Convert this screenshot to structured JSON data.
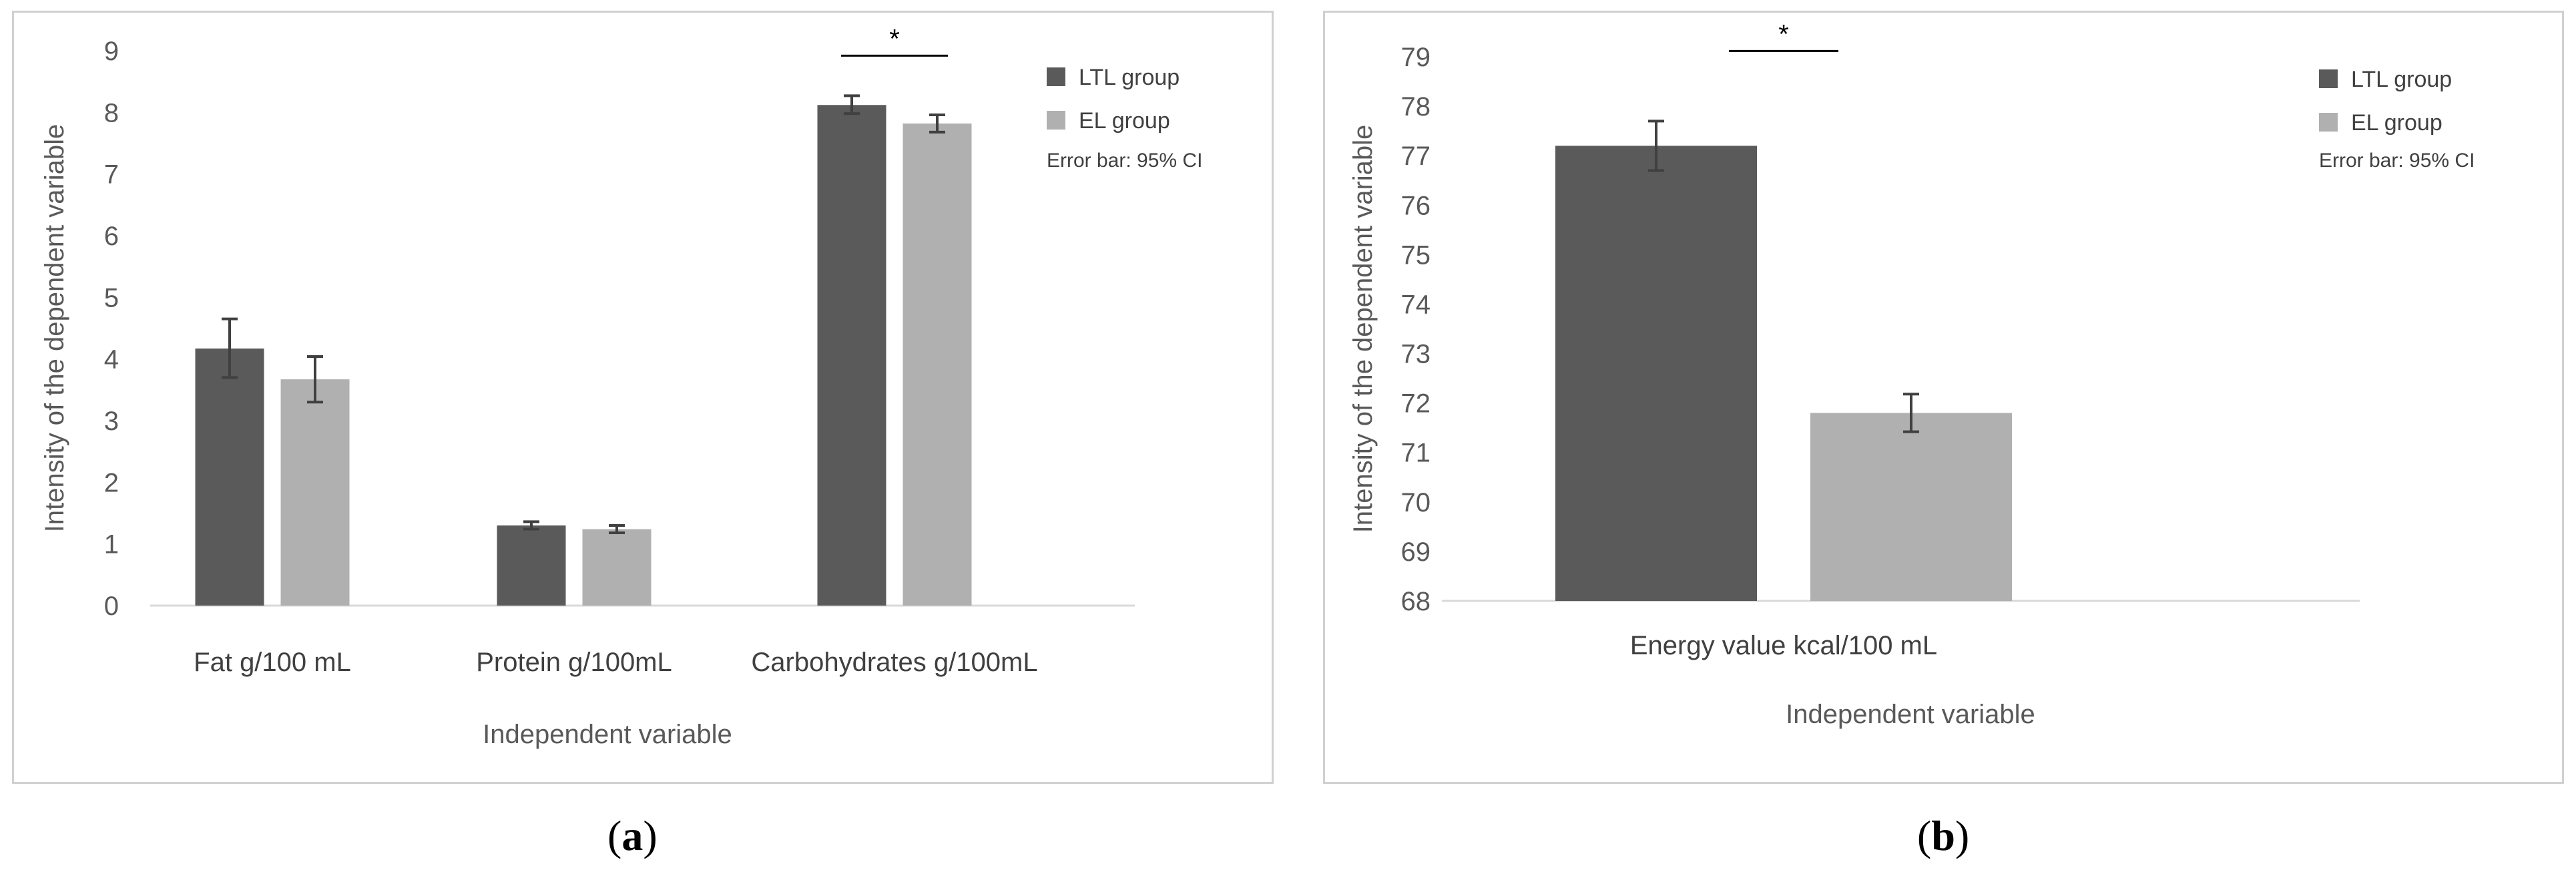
{
  "chart_data": [
    {
      "type": "bar",
      "panel_label": "a",
      "xlabel": "Independent variable",
      "ylabel": "Intensity of the dependent variable",
      "ylim": [
        0,
        9
      ],
      "yticks": [
        0,
        1,
        2,
        3,
        4,
        5,
        6,
        7,
        8,
        9
      ],
      "categories": [
        "Fat  g/100 mL",
        "Protein g/100mL",
        "Carbohydrates  g/100mL"
      ],
      "series": [
        {
          "name": "LTL group",
          "color": "#5a5a5a",
          "values": [
            4.17,
            1.3,
            8.12
          ],
          "ci_low": [
            3.7,
            1.24,
            7.98
          ],
          "ci_high": [
            4.65,
            1.36,
            8.27
          ]
        },
        {
          "name": "EL  group",
          "color": "#b0b0b0",
          "values": [
            3.67,
            1.24,
            7.82
          ],
          "ci_low": [
            3.3,
            1.18,
            7.68
          ],
          "ci_high": [
            4.04,
            1.3,
            7.96
          ]
        }
      ],
      "significance": {
        "category_index": 2,
        "label": "*"
      },
      "legend_note": "Error bar: 95% CI",
      "legend_position": "top-right"
    },
    {
      "type": "bar",
      "panel_label": "b",
      "xlabel": "Independent variable",
      "ylabel": "Intensity of the dependent variable",
      "ylim": [
        68,
        79
      ],
      "yticks": [
        68,
        69,
        70,
        71,
        72,
        73,
        74,
        75,
        76,
        77,
        78,
        79
      ],
      "categories": [
        "Energy value  kcal/100 mL"
      ],
      "series": [
        {
          "name": "LTL group",
          "color": "#5a5a5a",
          "values": [
            77.2
          ],
          "ci_low": [
            76.7
          ],
          "ci_high": [
            77.7
          ]
        },
        {
          "name": "EL  group",
          "color": "#b0b0b0",
          "values": [
            71.8
          ],
          "ci_low": [
            71.42
          ],
          "ci_high": [
            72.18
          ]
        }
      ],
      "significance": {
        "category_index": 0,
        "label": "*"
      },
      "legend_note": "Error bar: 95% CI",
      "legend_position": "top-right"
    }
  ]
}
